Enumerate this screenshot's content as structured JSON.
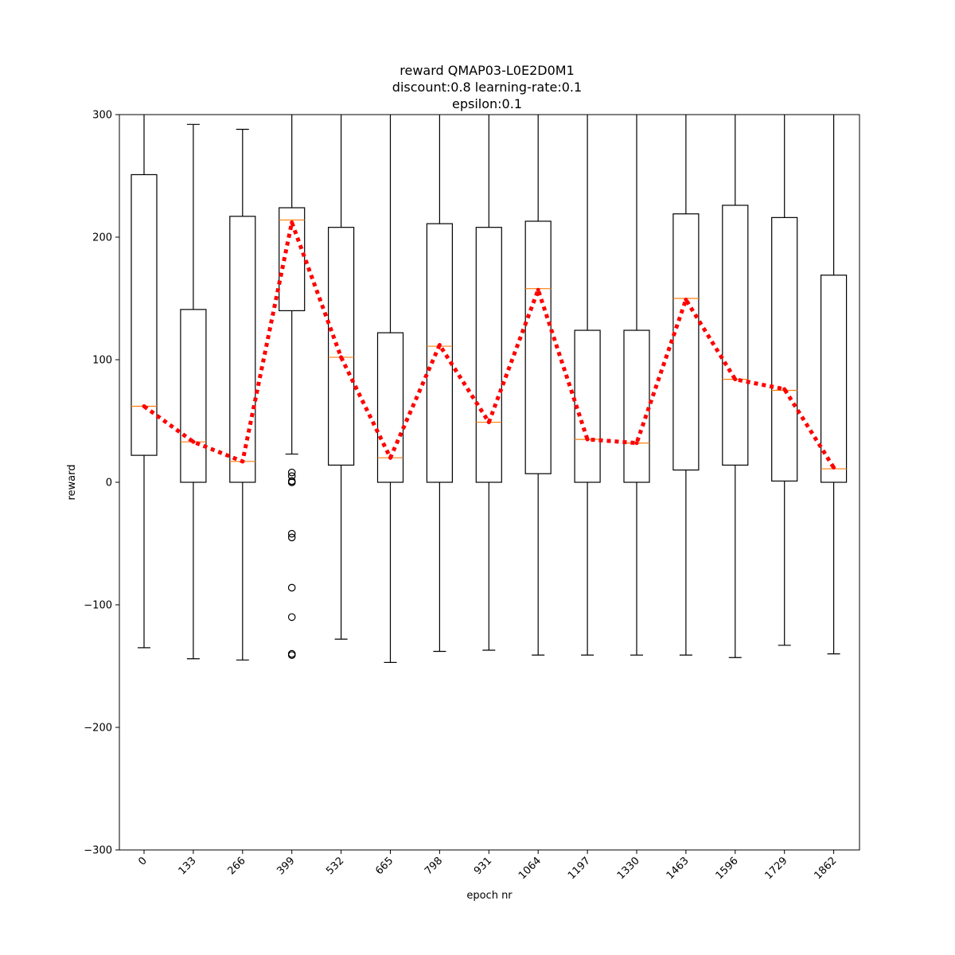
{
  "chart_data": {
    "type": "box",
    "title_lines": [
      "reward QMAP03-L0E2D0M1",
      "discount:0.8 learning-rate:0.1",
      "epsilon:0.1"
    ],
    "xlabel": "epoch nr",
    "ylabel": "reward",
    "ylim": [
      -300,
      300
    ],
    "yticks": [
      -300,
      -200,
      -100,
      0,
      100,
      200,
      300
    ],
    "ytick_labels": [
      "−300",
      "−200",
      "−100",
      "0",
      "100",
      "200",
      "300"
    ],
    "categories": [
      "0",
      "133",
      "266",
      "399",
      "532",
      "665",
      "798",
      "931",
      "1064",
      "1197",
      "1330",
      "1463",
      "1596",
      "1729",
      "1862"
    ],
    "boxes": [
      {
        "whisker_low": -135,
        "q1": 22,
        "median": 62,
        "q3": 251,
        "whisker_high": 300,
        "outliers": []
      },
      {
        "whisker_low": -144,
        "q1": 0,
        "median": 33,
        "q3": 141,
        "whisker_high": 292,
        "outliers": []
      },
      {
        "whisker_low": -145,
        "q1": 0,
        "median": 17,
        "q3": 217,
        "whisker_high": 288,
        "outliers": []
      },
      {
        "whisker_low": 23,
        "q1": 140,
        "median": 214,
        "q3": 224,
        "whisker_high": 300,
        "outliers": [
          8,
          5,
          1,
          0,
          0,
          -42,
          -45,
          -86,
          -110,
          -140,
          -141
        ]
      },
      {
        "whisker_low": -128,
        "q1": 14,
        "median": 102,
        "q3": 208,
        "whisker_high": 300,
        "outliers": []
      },
      {
        "whisker_low": -147,
        "q1": 0,
        "median": 20,
        "q3": 122,
        "whisker_high": 300,
        "outliers": []
      },
      {
        "whisker_low": -138,
        "q1": 0,
        "median": 111,
        "q3": 211,
        "whisker_high": 300,
        "outliers": []
      },
      {
        "whisker_low": -137,
        "q1": 0,
        "median": 49,
        "q3": 208,
        "whisker_high": 300,
        "outliers": []
      },
      {
        "whisker_low": -141,
        "q1": 7,
        "median": 158,
        "q3": 213,
        "whisker_high": 300,
        "outliers": []
      },
      {
        "whisker_low": -141,
        "q1": 0,
        "median": 35,
        "q3": 124,
        "whisker_high": 300,
        "outliers": []
      },
      {
        "whisker_low": -141,
        "q1": 0,
        "median": 32,
        "q3": 124,
        "whisker_high": 300,
        "outliers": []
      },
      {
        "whisker_low": -141,
        "q1": 10,
        "median": 150,
        "q3": 219,
        "whisker_high": 300,
        "outliers": []
      },
      {
        "whisker_low": -143,
        "q1": 14,
        "median": 84,
        "q3": 226,
        "whisker_high": 300,
        "outliers": []
      },
      {
        "whisker_low": -133,
        "q1": 1,
        "median": 75,
        "q3": 216,
        "whisker_high": 300,
        "outliers": []
      },
      {
        "whisker_low": -140,
        "q1": 0,
        "median": 11,
        "q3": 169,
        "whisker_high": 300,
        "outliers": []
      }
    ],
    "mean_line": [
      62,
      33,
      17,
      212,
      102,
      20,
      112,
      49,
      157,
      35,
      32,
      149,
      84,
      76,
      12
    ],
    "colors": {
      "box": "#000000",
      "median": "#ff7f0e",
      "mean_line": "#ff0000",
      "outlier": "#000000"
    }
  }
}
